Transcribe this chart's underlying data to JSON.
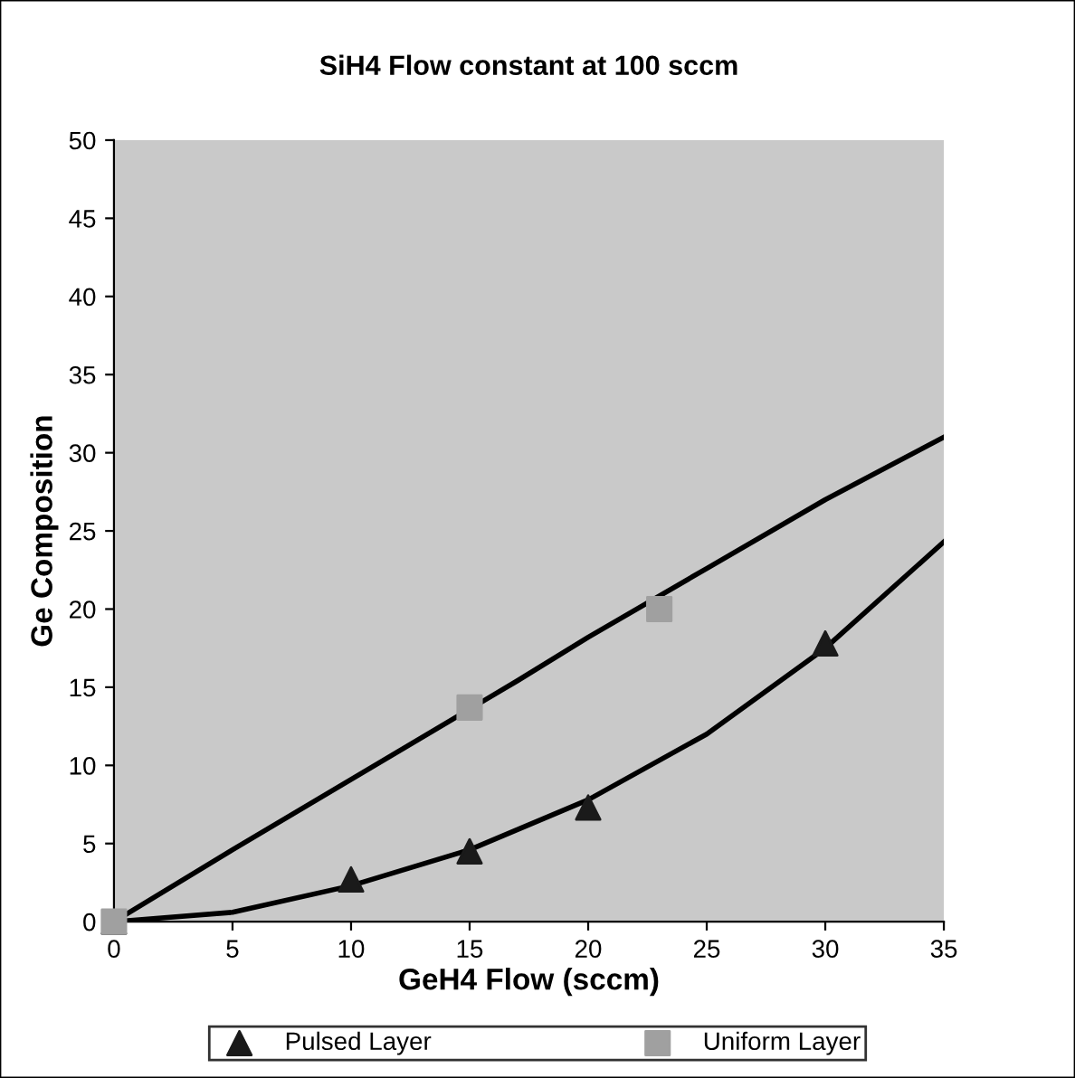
{
  "chart_data": {
    "type": "scatter",
    "title": "SiH4 Flow constant at 100 sccm",
    "xlabel": "GeH4 Flow (sccm)",
    "ylabel": "Ge Composition",
    "xlim": [
      0,
      35
    ],
    "xticks": [
      0,
      5,
      10,
      15,
      20,
      25,
      30,
      35
    ],
    "ylim": [
      0,
      50
    ],
    "yticks": [
      0,
      5,
      10,
      15,
      20,
      25,
      30,
      35,
      40,
      45,
      50
    ],
    "grid": false,
    "legend": "bottom",
    "series": [
      {
        "name": "Pulsed Layer",
        "marker": "triangle",
        "color": "#1a1a1a",
        "x": [
          0,
          10,
          15,
          20,
          30
        ],
        "values": [
          0,
          2.7,
          4.5,
          7.3,
          17.8
        ]
      },
      {
        "name": "Uniform Layer",
        "marker": "square",
        "color": "#a0a0a0",
        "x": [
          0,
          15,
          23
        ],
        "values": [
          0,
          13.7,
          20.0
        ]
      },
      {
        "type": "line",
        "marker": "none",
        "line_style": "solid",
        "color": "#000000",
        "x": [
          0,
          5,
          10,
          17,
          20,
          25,
          30,
          35
        ],
        "values": [
          0,
          4.6,
          9.1,
          15.4,
          18.2,
          22.6,
          27.0,
          31.0
        ]
      },
      {
        "type": "line",
        "marker": "none",
        "line_style": "solid",
        "color": "#000000",
        "x": [
          0,
          5,
          10,
          15,
          20,
          25,
          30,
          35
        ],
        "values": [
          0,
          0.6,
          2.3,
          4.6,
          7.8,
          12.0,
          17.5,
          24.3
        ]
      }
    ]
  }
}
